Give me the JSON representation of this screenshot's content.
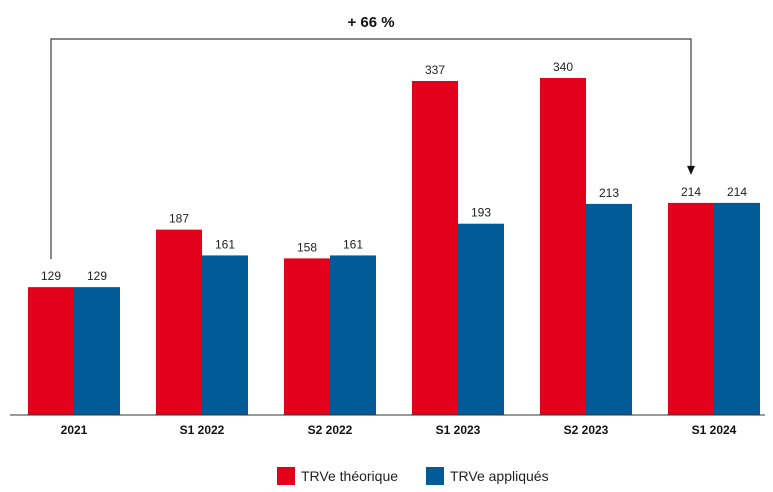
{
  "chart_data": {
    "type": "bar",
    "categories": [
      "2021",
      "S1 2022",
      "S2 2022",
      "S1 2023",
      "S2 2023",
      "S1 2024"
    ],
    "series": [
      {
        "name": "TRVe théorique",
        "values": [
          129,
          187,
          158,
          337,
          340,
          214
        ],
        "color": "#e2001a"
      },
      {
        "name": "TRVe appliqués",
        "values": [
          129,
          161,
          161,
          193,
          213,
          214
        ],
        "color": "#005b96"
      }
    ],
    "ylim": [
      0,
      340
    ],
    "grid": false,
    "legend_position": "bottom-center",
    "annotation": {
      "text": "+ 66 %",
      "from_category": "2021",
      "to_category": "S1 2024"
    }
  }
}
